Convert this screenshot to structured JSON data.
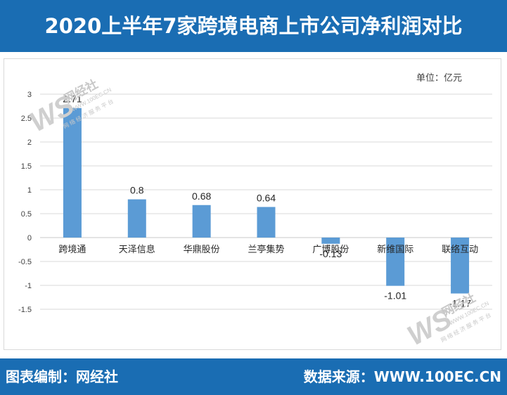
{
  "header": {
    "title": "2020上半年7家跨境电商上市公司净利润对比"
  },
  "unit_label": "单位：亿元",
  "footer": {
    "left": "图表编制：网经社",
    "right": "数据来源：WWW.100EC.CN"
  },
  "watermark": {
    "brand": "网经社",
    "url": "WWW.100EC.CN",
    "tagline": "网 络 经 济 服 务 平 台"
  },
  "colors": {
    "header_bg": "#1a6db3",
    "bar": "#5b9bd5",
    "grid": "#d9d9d9"
  },
  "chart_data": {
    "type": "bar",
    "title": "2020上半年7家跨境电商上市公司净利润对比",
    "categories": [
      "跨境通",
      "天泽信息",
      "华鼎股份",
      "兰亭集势",
      "广博股份",
      "新维国际",
      "联络互动"
    ],
    "values": [
      2.71,
      0.8,
      0.68,
      0.64,
      -0.13,
      -1.01,
      -1.17
    ],
    "value_labels": [
      "2.71",
      "0.8",
      "0.68",
      "0.64",
      "-0.13",
      "-1.01",
      "-1.17"
    ],
    "yticks": [
      3,
      2.5,
      2,
      1.5,
      1,
      0.5,
      0,
      -0.5,
      -1,
      -1.5
    ],
    "ytick_labels": [
      "3",
      "2.5",
      "2",
      "1.5",
      "1",
      "0.5",
      "0",
      "-0.5",
      "-1",
      "-1.5"
    ],
    "ylim": [
      -1.5,
      3
    ],
    "ylabel": "",
    "xlabel": "",
    "grid": true,
    "legend": "none"
  }
}
